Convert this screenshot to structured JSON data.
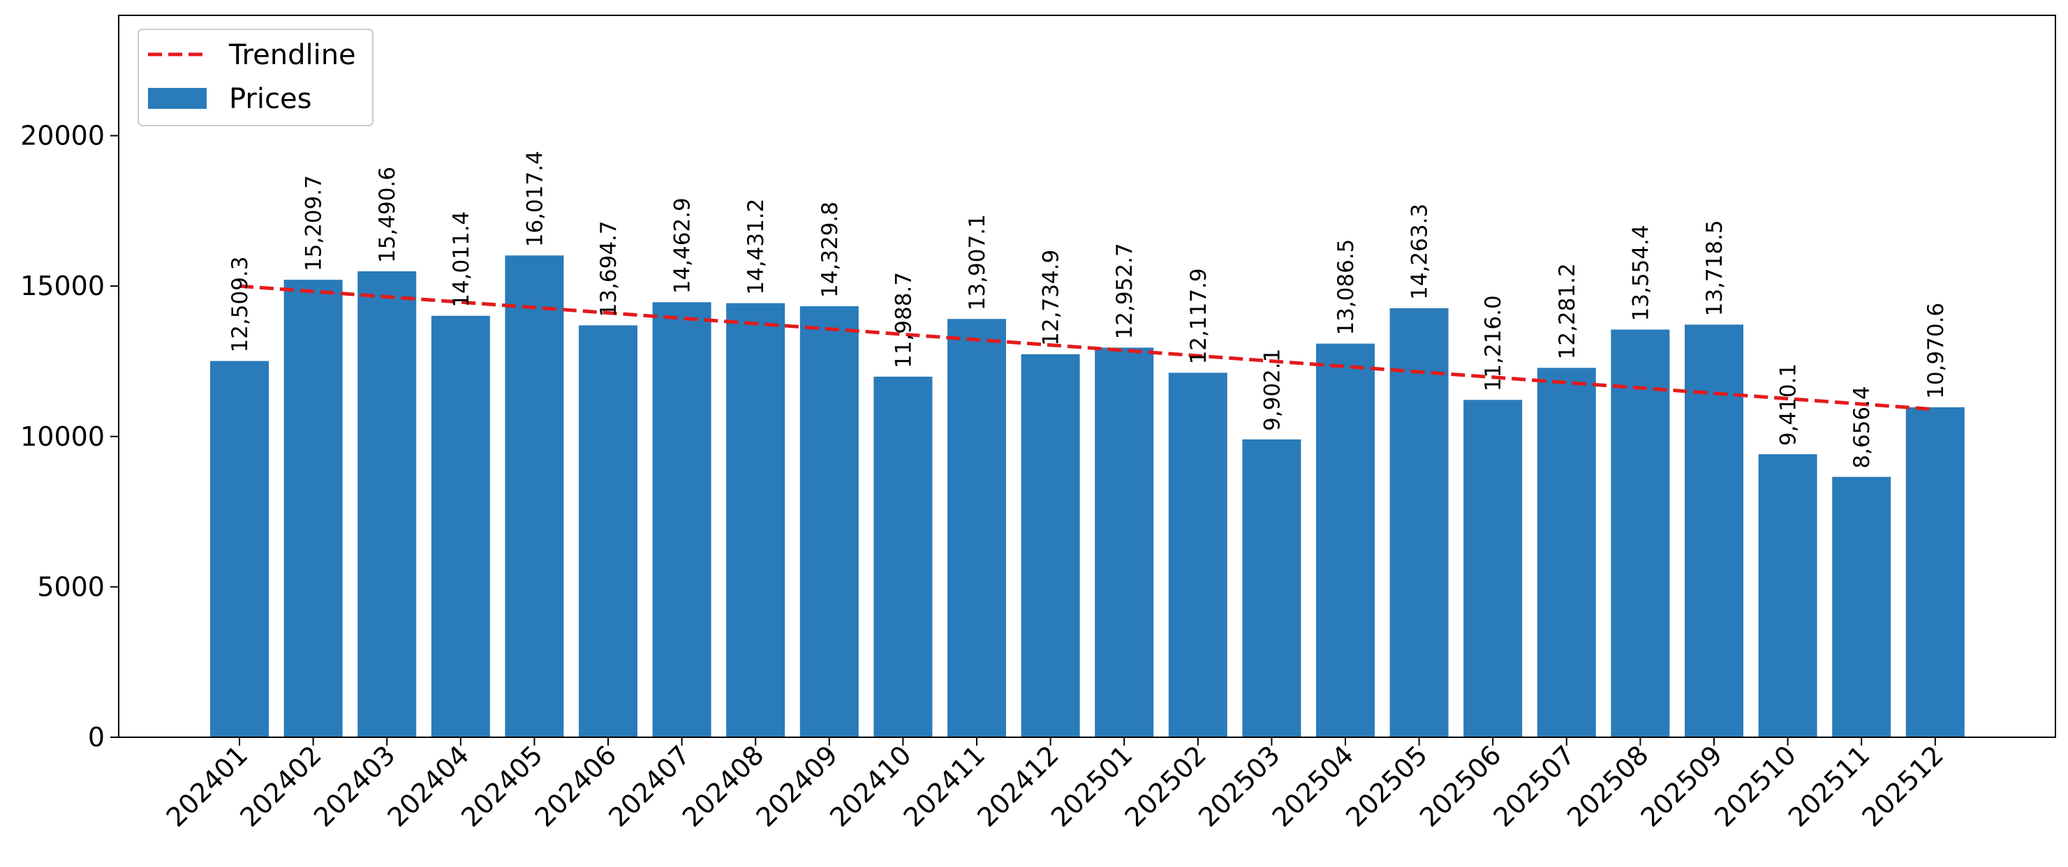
{
  "chart_data": {
    "type": "bar",
    "categories": [
      "202401",
      "202402",
      "202403",
      "202404",
      "202405",
      "202406",
      "202407",
      "202408",
      "202409",
      "202410",
      "202411",
      "202412",
      "202501",
      "202502",
      "202503",
      "202504",
      "202505",
      "202506",
      "202507",
      "202508",
      "202509",
      "202510",
      "202511",
      "202512"
    ],
    "series": [
      {
        "name": "Prices",
        "type": "bar",
        "color": "#2a7bba",
        "values": [
          12509.3,
          15209.7,
          15490.6,
          14011.4,
          16017.4,
          13694.7,
          14462.9,
          14431.2,
          14329.8,
          11988.7,
          13907.1,
          12734.9,
          12952.7,
          12117.9,
          9902.1,
          13086.5,
          14263.3,
          11216.0,
          12281.2,
          13554.4,
          13718.5,
          9410.1,
          8656.4,
          10970.6
        ],
        "data_labels": [
          "12,509.3",
          "15,209.7",
          "15,490.6",
          "14,011.4",
          "16,017.4",
          "13,694.7",
          "14,462.9",
          "14,431.2",
          "14,329.8",
          "11,988.7",
          "13,907.1",
          "12,734.9",
          "12,952.7",
          "12,117.9",
          "9,902.1",
          "13,086.5",
          "14,263.3",
          "11,216.0",
          "12,281.2",
          "13,554.4",
          "13,718.5",
          "9,410.1",
          "8,656.4",
          "10,970.6"
        ]
      },
      {
        "name": "Trendline",
        "type": "line",
        "style": "dashed",
        "color": "#e41a1c",
        "start_value": 15000,
        "end_value": 10900
      }
    ],
    "title": "",
    "xlabel": "",
    "ylabel": "",
    "ylim": [
      0,
      24000
    ],
    "yticks": [
      0,
      5000,
      10000,
      15000,
      20000
    ],
    "ytick_labels": [
      "0",
      "5000",
      "10000",
      "15000",
      "20000"
    ],
    "xtick_rotation_deg": 45,
    "grid": false,
    "legend_position": "top-left",
    "legend_order": [
      "Trendline",
      "Prices"
    ]
  }
}
